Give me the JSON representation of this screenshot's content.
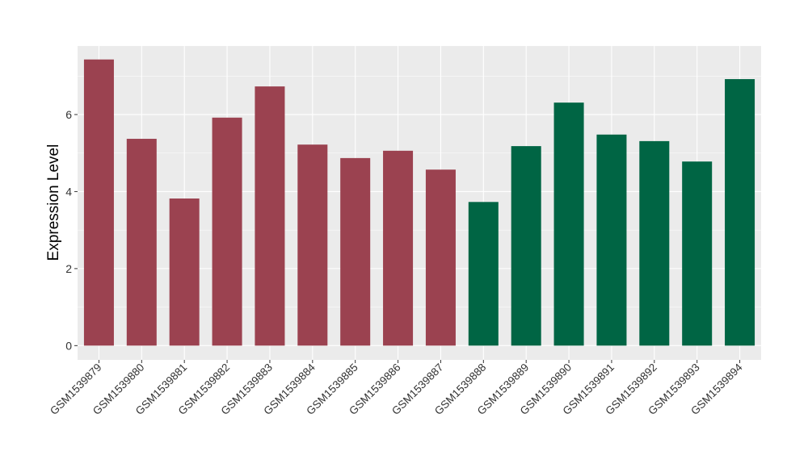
{
  "chart_data": {
    "type": "bar",
    "title": "",
    "xlabel": "",
    "ylabel": "Expression Level",
    "categories": [
      "GSM1539879",
      "GSM1539880",
      "GSM1539881",
      "GSM1539882",
      "GSM1539883",
      "GSM1539884",
      "GSM1539885",
      "GSM1539886",
      "GSM1539887",
      "GSM1539888",
      "GSM1539889",
      "GSM1539890",
      "GSM1539891",
      "GSM1539892",
      "GSM1539893",
      "GSM1539894"
    ],
    "values": [
      7.43,
      5.37,
      3.82,
      5.92,
      6.73,
      5.22,
      4.87,
      5.06,
      4.57,
      3.73,
      5.18,
      6.31,
      5.48,
      5.31,
      4.78,
      6.92
    ],
    "groups": [
      0,
      0,
      0,
      0,
      0,
      0,
      0,
      0,
      0,
      1,
      1,
      1,
      1,
      1,
      1,
      1
    ],
    "group_colors": [
      "#9b4250",
      "#006544"
    ],
    "ylim": [
      -0.37,
      7.78
    ],
    "yticks": [
      0,
      2,
      4,
      6
    ],
    "grid": true,
    "legend": "none",
    "panel_background": "#ebebeb"
  }
}
